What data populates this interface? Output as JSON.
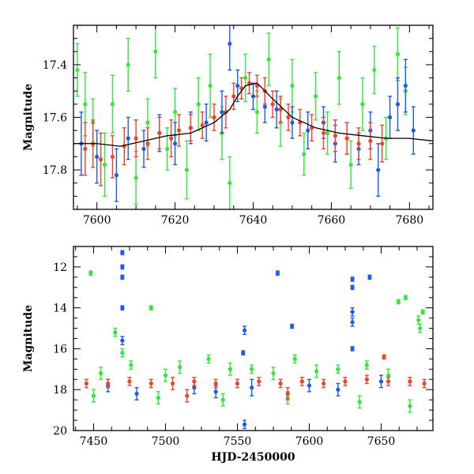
{
  "chart_data": [
    {
      "type": "scatter",
      "title": "",
      "xlabel": "",
      "ylabel": "Magnitude",
      "xlim": [
        7594,
        7686
      ],
      "ylim": [
        17.95,
        17.25
      ],
      "y_inverted": true,
      "xticks": [
        7600,
        7620,
        7640,
        7660,
        7680
      ],
      "xtick_labels": [
        "7600",
        "7620",
        "7640",
        "7660",
        "7680"
      ],
      "yticks": [
        17.4,
        17.6,
        17.8
      ],
      "ytick_labels": [
        "17.4",
        "17.6",
        "17.8"
      ],
      "grid": false,
      "legend": "none",
      "model_curve": {
        "color": "#000000",
        "x": [
          7594,
          7600,
          7606,
          7612,
          7618,
          7624,
          7630,
          7634,
          7636,
          7638,
          7641,
          7645,
          7650,
          7656,
          7662,
          7668,
          7674,
          7680,
          7686
        ],
        "y": [
          17.7,
          17.7,
          17.71,
          17.69,
          17.67,
          17.66,
          17.62,
          17.57,
          17.52,
          17.48,
          17.47,
          17.53,
          17.6,
          17.64,
          17.66,
          17.67,
          17.68,
          17.68,
          17.69
        ]
      },
      "series": [
        {
          "name": "",
          "color": "#33e63a",
          "points": [
            [
              7595,
              17.42,
              0.1
            ],
            [
              7597,
              17.55,
              0.12
            ],
            [
              7599,
              17.62,
              0.09
            ],
            [
              7602,
              17.78,
              0.12
            ],
            [
              7604,
              17.55,
              0.11
            ],
            [
              7608,
              17.4,
              0.1
            ],
            [
              7610,
              17.83,
              0.1
            ],
            [
              7613,
              17.62,
              0.09
            ],
            [
              7615,
              17.35,
              0.1
            ],
            [
              7618,
              17.72,
              0.08
            ],
            [
              7620,
              17.58,
              0.09
            ],
            [
              7623,
              17.8,
              0.11
            ],
            [
              7626,
              17.55,
              0.1
            ],
            [
              7629,
              17.48,
              0.12
            ],
            [
              7632,
              17.66,
              0.1
            ],
            [
              7634,
              17.85,
              0.1
            ],
            [
              7638,
              17.45,
              0.09
            ],
            [
              7641,
              17.58,
              0.08
            ],
            [
              7644,
              17.38,
              0.1
            ],
            [
              7647,
              17.62,
              0.09
            ],
            [
              7650,
              17.48,
              0.1
            ],
            [
              7653,
              17.74,
              0.08
            ],
            [
              7656,
              17.52,
              0.09
            ],
            [
              7659,
              17.66,
              0.08
            ],
            [
              7662,
              17.45,
              0.1
            ],
            [
              7665,
              17.78,
              0.09
            ],
            [
              7668,
              17.55,
              0.1
            ],
            [
              7671,
              17.42,
              0.09
            ],
            [
              7674,
              17.68,
              0.08
            ],
            [
              7677,
              17.36,
              0.1
            ],
            [
              7679,
              17.5,
              0.09
            ]
          ]
        },
        {
          "name": "",
          "color": "#1a5ce6",
          "points": [
            [
              7596,
              17.7,
              0.12
            ],
            [
              7600,
              17.75,
              0.1
            ],
            [
              7605,
              17.82,
              0.1
            ],
            [
              7608,
              17.68,
              0.08
            ],
            [
              7612,
              17.72,
              0.07
            ],
            [
              7616,
              17.66,
              0.07
            ],
            [
              7620,
              17.7,
              0.08
            ],
            [
              7624,
              17.64,
              0.06
            ],
            [
              7628,
              17.62,
              0.07
            ],
            [
              7632,
              17.58,
              0.08
            ],
            [
              7634,
              17.32,
              0.1
            ],
            [
              7636,
              17.48,
              0.06
            ],
            [
              7640,
              17.52,
              0.05
            ],
            [
              7643,
              17.56,
              0.06
            ],
            [
              7646,
              17.57,
              0.07
            ],
            [
              7650,
              17.62,
              0.06
            ],
            [
              7654,
              17.65,
              0.07
            ],
            [
              7658,
              17.62,
              0.06
            ],
            [
              7661,
              17.7,
              0.07
            ],
            [
              7664,
              17.68,
              0.06
            ],
            [
              7667,
              17.72,
              0.06
            ],
            [
              7670,
              17.65,
              0.07
            ],
            [
              7672,
              17.8,
              0.1
            ],
            [
              7675,
              17.6,
              0.08
            ],
            [
              7677,
              17.55,
              0.1
            ],
            [
              7679,
              17.48,
              0.1
            ],
            [
              7681,
              17.65,
              0.09
            ]
          ]
        },
        {
          "name": "",
          "color": "#f0422a",
          "points": [
            [
              7597,
              17.72,
              0.1
            ],
            [
              7599,
              17.7,
              0.09
            ],
            [
              7601,
              17.76,
              0.1
            ],
            [
              7604,
              17.75,
              0.08
            ],
            [
              7607,
              17.71,
              0.07
            ],
            [
              7610,
              17.68,
              0.07
            ],
            [
              7613,
              17.7,
              0.06
            ],
            [
              7616,
              17.66,
              0.06
            ],
            [
              7619,
              17.68,
              0.07
            ],
            [
              7621,
              17.65,
              0.06
            ],
            [
              7624,
              17.64,
              0.05
            ],
            [
              7627,
              17.63,
              0.05
            ],
            [
              7630,
              17.6,
              0.05
            ],
            [
              7633,
              17.58,
              0.06
            ],
            [
              7635,
              17.52,
              0.05
            ],
            [
              7637,
              17.49,
              0.04
            ],
            [
              7639,
              17.47,
              0.04
            ],
            [
              7641,
              17.48,
              0.04
            ],
            [
              7643,
              17.5,
              0.05
            ],
            [
              7645,
              17.55,
              0.05
            ],
            [
              7647,
              17.57,
              0.05
            ],
            [
              7649,
              17.6,
              0.05
            ],
            [
              7652,
              17.62,
              0.05
            ],
            [
              7655,
              17.64,
              0.05
            ],
            [
              7658,
              17.66,
              0.06
            ],
            [
              7661,
              17.67,
              0.06
            ],
            [
              7664,
              17.68,
              0.06
            ],
            [
              7667,
              17.7,
              0.06
            ],
            [
              7670,
              17.69,
              0.07
            ],
            [
              7673,
              17.7,
              0.07
            ]
          ]
        }
      ]
    },
    {
      "type": "scatter",
      "title": "",
      "xlabel": "HJD-2450000",
      "ylabel": "Magnitude",
      "xlim": [
        7436,
        7686
      ],
      "ylim": [
        20,
        11
      ],
      "y_inverted": true,
      "xticks": [
        7450,
        7500,
        7550,
        7600,
        7650
      ],
      "xtick_labels": [
        "7450",
        "7500",
        "7550",
        "7600",
        "7650"
      ],
      "yticks": [
        12,
        14,
        16,
        18,
        20
      ],
      "ytick_labels": [
        "12",
        "14",
        "16",
        "18",
        "20"
      ],
      "grid": false,
      "legend": "none",
      "series": [
        {
          "name": "",
          "color": "#33e63a",
          "points": [
            [
              7448,
              12.3,
              0.1
            ],
            [
              7465,
              15.2,
              0.2
            ],
            [
              7470,
              16.2,
              0.2
            ],
            [
              7490,
              14.0,
              0.1
            ],
            [
              7476,
              16.8,
              0.2
            ],
            [
              7530,
              16.5,
              0.2
            ],
            [
              7560,
              17.0,
              0.2
            ],
            [
              7590,
              16.5,
              0.2
            ],
            [
              7620,
              17.0,
              0.2
            ],
            [
              7640,
              16.8,
              0.2
            ],
            [
              7662,
              13.7,
              0.1
            ],
            [
              7667,
              13.5,
              0.1
            ],
            [
              7676,
              14.6,
              0.2
            ],
            [
              7677,
              15.0,
              0.2
            ],
            [
              7679,
              14.2,
              0.1
            ],
            [
              7455,
              17.2,
              0.3
            ],
            [
              7500,
              17.3,
              0.3
            ],
            [
              7510,
              16.9,
              0.3
            ],
            [
              7545,
              17.0,
              0.3
            ],
            [
              7575,
              17.2,
              0.3
            ],
            [
              7605,
              17.1,
              0.3
            ],
            [
              7655,
              17.3,
              0.3
            ],
            [
              7450,
              18.3,
              0.3
            ],
            [
              7495,
              18.4,
              0.3
            ],
            [
              7540,
              18.5,
              0.3
            ],
            [
              7585,
              18.4,
              0.3
            ],
            [
              7635,
              18.6,
              0.3
            ],
            [
              7670,
              18.8,
              0.3
            ]
          ]
        },
        {
          "name": "",
          "color": "#1a5ce6",
          "points": [
            [
              7470,
              11.3,
              0.1
            ],
            [
              7470,
              12.0,
              0.1
            ],
            [
              7470,
              12.5,
              0.1
            ],
            [
              7470,
              14.0,
              0.1
            ],
            [
              7470,
              15.6,
              0.2
            ],
            [
              7555,
              15.1,
              0.2
            ],
            [
              7554,
              16.2,
              0.1
            ],
            [
              7578,
              12.3,
              0.1
            ],
            [
              7588,
              14.9,
              0.1
            ],
            [
              7555,
              19.7,
              0.2
            ],
            [
              7630,
              12.6,
              0.1
            ],
            [
              7630,
              13.0,
              0.1
            ],
            [
              7630,
              14.2,
              0.2
            ],
            [
              7630,
              14.7,
              0.2
            ],
            [
              7630,
              16.0,
              0.1
            ],
            [
              7642,
              12.5,
              0.1
            ],
            [
              7460,
              17.8,
              0.3
            ],
            [
              7520,
              17.9,
              0.3
            ],
            [
              7560,
              17.9,
              0.4
            ],
            [
              7600,
              17.8,
              0.3
            ],
            [
              7650,
              17.6,
              0.3
            ],
            [
              7480,
              18.2,
              0.3
            ],
            [
              7535,
              18.1,
              0.3
            ],
            [
              7620,
              18.0,
              0.3
            ]
          ]
        },
        {
          "name": "",
          "color": "#f0422a",
          "points": [
            [
              7445,
              17.7,
              0.2
            ],
            [
              7460,
              17.7,
              0.2
            ],
            [
              7475,
              17.6,
              0.2
            ],
            [
              7490,
              17.7,
              0.2
            ],
            [
              7505,
              17.7,
              0.3
            ],
            [
              7520,
              17.6,
              0.2
            ],
            [
              7535,
              17.7,
              0.2
            ],
            [
              7550,
              17.7,
              0.2
            ],
            [
              7565,
              17.6,
              0.2
            ],
            [
              7580,
              17.7,
              0.2
            ],
            [
              7595,
              17.6,
              0.2
            ],
            [
              7610,
              17.7,
              0.2
            ],
            [
              7625,
              17.6,
              0.2
            ],
            [
              7640,
              17.5,
              0.2
            ],
            [
              7655,
              17.6,
              0.2
            ],
            [
              7670,
              17.6,
              0.2
            ],
            [
              7680,
              17.7,
              0.2
            ],
            [
              7652,
              16.4,
              0.1
            ],
            [
              7515,
              18.3,
              0.3
            ],
            [
              7585,
              18.2,
              0.3
            ]
          ]
        }
      ]
    }
  ]
}
